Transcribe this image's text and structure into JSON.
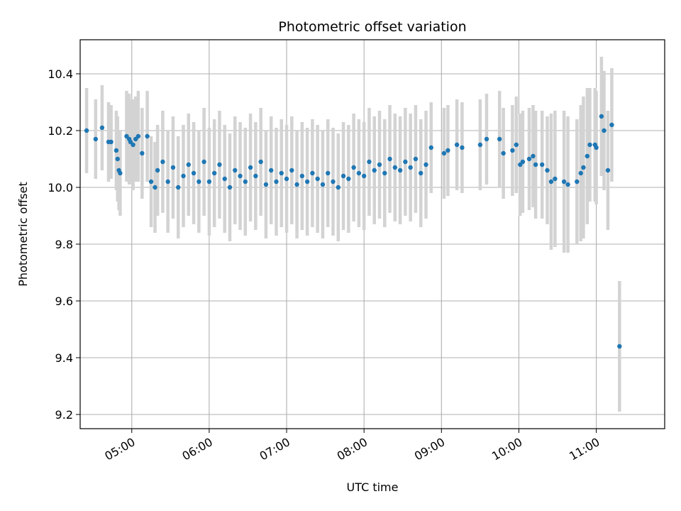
{
  "chart_data": {
    "type": "scatter",
    "title": "Photometric offset variation",
    "xlabel": "UTC time",
    "ylabel": "Photometric offset",
    "x_ticks": [
      "05:00",
      "06:00",
      "07:00",
      "08:00",
      "09:00",
      "10:00",
      "11:00"
    ],
    "y_ticks": [
      "9.2",
      "9.4",
      "9.6",
      "9.8",
      "10.0",
      "10.2",
      "10.4"
    ],
    "xlim": [
      "04:20",
      "11:53"
    ],
    "ylim": [
      9.15,
      10.52
    ],
    "grid": true,
    "marker_color": "#1f77b4",
    "errorbar_color": "#d3d3d3",
    "series": [
      {
        "points": [
          [
            "04:25",
            10.2,
            0.15
          ],
          [
            "04:32",
            10.17,
            0.14
          ],
          [
            "04:37",
            10.21,
            0.15
          ],
          [
            "04:42",
            10.16,
            0.14
          ],
          [
            "04:44",
            10.16,
            0.13
          ],
          [
            "04:48",
            10.13,
            0.14
          ],
          [
            "04:49",
            10.1,
            0.15
          ],
          [
            "04:50",
            10.06,
            0.14
          ],
          [
            "04:51",
            10.05,
            0.15
          ],
          [
            "04:56",
            10.18,
            0.16
          ],
          [
            "04:58",
            10.17,
            0.16
          ],
          [
            "04:59",
            10.16,
            0.15
          ],
          [
            "05:01",
            10.15,
            0.16
          ],
          [
            "05:03",
            10.17,
            0.15
          ],
          [
            "05:05",
            10.18,
            0.16
          ],
          [
            "05:08",
            10.12,
            0.16
          ],
          [
            "05:12",
            10.18,
            0.16
          ],
          [
            "05:15",
            10.02,
            0.16
          ],
          [
            "05:18",
            10.0,
            0.16
          ],
          [
            "05:20",
            10.06,
            0.16
          ],
          [
            "05:24",
            10.09,
            0.18
          ],
          [
            "05:28",
            10.02,
            0.18
          ],
          [
            "05:32",
            10.07,
            0.18
          ],
          [
            "05:36",
            10.0,
            0.18
          ],
          [
            "05:40",
            10.04,
            0.18
          ],
          [
            "05:44",
            10.08,
            0.18
          ],
          [
            "05:48",
            10.05,
            0.18
          ],
          [
            "05:52",
            10.02,
            0.18
          ],
          [
            "05:56",
            10.09,
            0.19
          ],
          [
            "06:00",
            10.02,
            0.19
          ],
          [
            "06:04",
            10.05,
            0.19
          ],
          [
            "06:08",
            10.08,
            0.19
          ],
          [
            "06:12",
            10.03,
            0.19
          ],
          [
            "06:16",
            10.0,
            0.19
          ],
          [
            "06:20",
            10.06,
            0.19
          ],
          [
            "06:24",
            10.04,
            0.19
          ],
          [
            "06:28",
            10.02,
            0.19
          ],
          [
            "06:32",
            10.07,
            0.19
          ],
          [
            "06:36",
            10.04,
            0.19
          ],
          [
            "06:40",
            10.09,
            0.19
          ],
          [
            "06:44",
            10.01,
            0.19
          ],
          [
            "06:48",
            10.06,
            0.19
          ],
          [
            "06:52",
            10.02,
            0.19
          ],
          [
            "06:56",
            10.05,
            0.19
          ],
          [
            "07:00",
            10.03,
            0.19
          ],
          [
            "07:04",
            10.06,
            0.19
          ],
          [
            "07:08",
            10.01,
            0.19
          ],
          [
            "07:12",
            10.04,
            0.19
          ],
          [
            "07:16",
            10.02,
            0.19
          ],
          [
            "07:20",
            10.05,
            0.19
          ],
          [
            "07:24",
            10.03,
            0.19
          ],
          [
            "07:28",
            10.01,
            0.19
          ],
          [
            "07:32",
            10.05,
            0.19
          ],
          [
            "07:36",
            10.02,
            0.19
          ],
          [
            "07:40",
            10.0,
            0.19
          ],
          [
            "07:44",
            10.04,
            0.19
          ],
          [
            "07:48",
            10.03,
            0.19
          ],
          [
            "07:52",
            10.07,
            0.19
          ],
          [
            "07:56",
            10.05,
            0.19
          ],
          [
            "08:00",
            10.04,
            0.19
          ],
          [
            "08:04",
            10.09,
            0.19
          ],
          [
            "08:08",
            10.06,
            0.19
          ],
          [
            "08:12",
            10.08,
            0.19
          ],
          [
            "08:16",
            10.05,
            0.19
          ],
          [
            "08:20",
            10.1,
            0.19
          ],
          [
            "08:24",
            10.07,
            0.19
          ],
          [
            "08:28",
            10.06,
            0.19
          ],
          [
            "08:32",
            10.09,
            0.19
          ],
          [
            "08:36",
            10.07,
            0.19
          ],
          [
            "08:40",
            10.1,
            0.19
          ],
          [
            "08:44",
            10.05,
            0.19
          ],
          [
            "08:48",
            10.08,
            0.19
          ],
          [
            "08:52",
            10.14,
            0.16
          ],
          [
            "09:02",
            10.12,
            0.16
          ],
          [
            "09:05",
            10.13,
            0.16
          ],
          [
            "09:12",
            10.15,
            0.16
          ],
          [
            "09:16",
            10.14,
            0.16
          ],
          [
            "09:30",
            10.15,
            0.16
          ],
          [
            "09:35",
            10.17,
            0.16
          ],
          [
            "09:45",
            10.17,
            0.17
          ],
          [
            "09:48",
            10.12,
            0.16
          ],
          [
            "09:55",
            10.13,
            0.16
          ],
          [
            "09:58",
            10.15,
            0.17
          ],
          [
            "10:01",
            10.08,
            0.18
          ],
          [
            "10:03",
            10.09,
            0.18
          ],
          [
            "10:08",
            10.1,
            0.18
          ],
          [
            "10:11",
            10.11,
            0.18
          ],
          [
            "10:13",
            10.08,
            0.19
          ],
          [
            "10:18",
            10.08,
            0.19
          ],
          [
            "10:22",
            10.06,
            0.19
          ],
          [
            "10:25",
            10.02,
            0.24
          ],
          [
            "10:28",
            10.03,
            0.24
          ],
          [
            "10:35",
            10.02,
            0.25
          ],
          [
            "10:38",
            10.01,
            0.24
          ],
          [
            "10:45",
            10.02,
            0.22
          ],
          [
            "10:48",
            10.05,
            0.24
          ],
          [
            "10:50",
            10.07,
            0.25
          ],
          [
            "10:53",
            10.11,
            0.24
          ],
          [
            "10:55",
            10.15,
            0.2
          ],
          [
            "10:59",
            10.15,
            0.2
          ],
          [
            "11:00",
            10.14,
            0.2
          ],
          [
            "11:04",
            10.25,
            0.21
          ],
          [
            "11:06",
            10.2,
            0.21
          ],
          [
            "11:09",
            10.06,
            0.21
          ],
          [
            "11:12",
            10.22,
            0.2
          ],
          [
            "11:18",
            9.44,
            0.23
          ]
        ]
      }
    ]
  }
}
